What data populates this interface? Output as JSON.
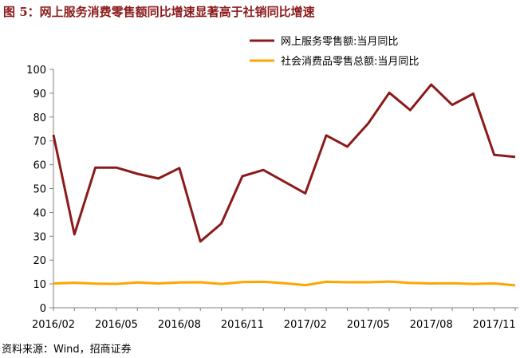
{
  "header": {
    "figure_title": "图 5：网上服务消费零售额同比增速显著高于社销同比增速"
  },
  "footer": {
    "source": "资料来源：Wind，招商证券"
  },
  "colors": {
    "series_1": "#8B1A1A",
    "series_2": "#FFA500",
    "axis": "#808080",
    "title": "#8B1A1A"
  },
  "chart_data": {
    "type": "line",
    "title": "",
    "xlabel": "",
    "ylabel": "",
    "ylim": [
      0,
      100
    ],
    "yticks": [
      0,
      10,
      20,
      30,
      40,
      50,
      60,
      70,
      80,
      90,
      100
    ],
    "grid": false,
    "legend_position": "top-right",
    "categories": [
      "2016/02",
      "2016/03",
      "2016/04",
      "2016/05",
      "2016/06",
      "2016/07",
      "2016/08",
      "2016/09",
      "2016/10",
      "2016/11",
      "2016/12",
      "2017/01",
      "2017/02",
      "2017/03",
      "2017/04",
      "2017/05",
      "2017/06",
      "2017/07",
      "2017/08",
      "2017/09",
      "2017/10",
      "2017/11",
      "2017/12"
    ],
    "x_tick_labels": [
      "2016/02",
      "2016/05",
      "2016/08",
      "2016/11",
      "2017/02",
      "2017/05",
      "2017/08",
      "2017/11"
    ],
    "series": [
      {
        "name": "网上服务零售额:当月同比",
        "values": [
          72.5,
          30.8,
          58.8,
          58.8,
          56.2,
          54.2,
          58.6,
          27.8,
          35.3,
          55.2,
          57.8,
          52.9,
          48.0,
          72.3,
          67.6,
          77.4,
          90.2,
          82.9,
          93.6,
          85.1,
          89.8,
          64.1,
          63.3
        ]
      },
      {
        "name": "社会消费品零售总额:当月同比",
        "values": [
          10.2,
          10.5,
          10.1,
          10.0,
          10.6,
          10.2,
          10.6,
          10.7,
          10.0,
          10.8,
          10.9,
          10.3,
          9.5,
          10.9,
          10.7,
          10.7,
          11.0,
          10.4,
          10.2,
          10.3,
          10.0,
          10.2,
          9.4
        ]
      }
    ]
  }
}
